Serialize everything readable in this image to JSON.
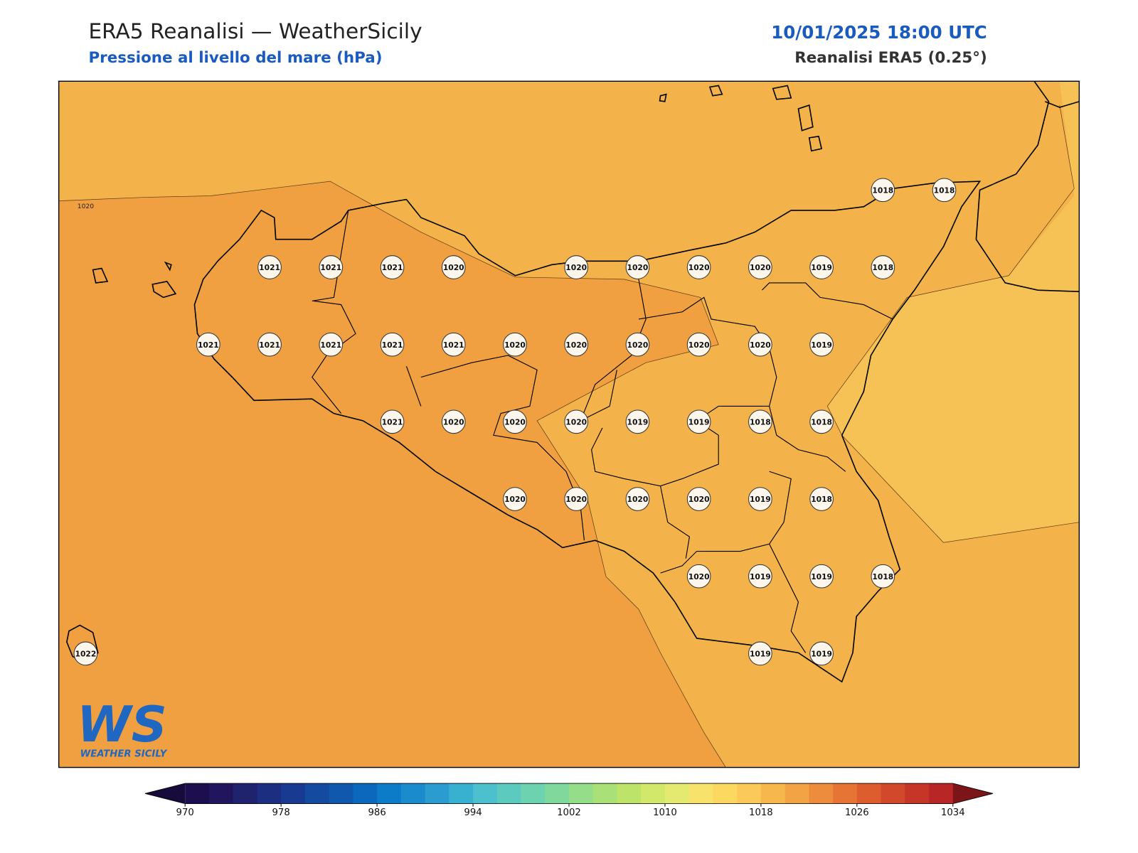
{
  "header": {
    "title": "ERA5 Reanalisi — WeatherSicily",
    "subtitle": "Pressione al livello del mare (hPa)",
    "datetime": "10/01/2025 18:00 UTC",
    "source": "Reanalisi ERA5 (0.25°)"
  },
  "map": {
    "contour_label": "1020",
    "stations": {
      "rows": [
        [
          null,
          null,
          null,
          null,
          null,
          null,
          null,
          null,
          null,
          null,
          null,
          null,
          null,
          1018,
          1018
        ],
        [
          null,
          null,
          null,
          1021,
          1021,
          1021,
          1020,
          null,
          1020,
          1020,
          1020,
          1020,
          1019,
          1018,
          null
        ],
        [
          null,
          null,
          1021,
          1021,
          1021,
          1021,
          1021,
          1020,
          1020,
          1020,
          1020,
          1020,
          1019,
          null,
          null
        ],
        [
          null,
          null,
          null,
          null,
          null,
          1021,
          1020,
          1020,
          1020,
          1019,
          1019,
          1018,
          1018,
          null,
          null
        ],
        [
          null,
          null,
          null,
          null,
          null,
          null,
          null,
          1020,
          1020,
          1020,
          1020,
          1019,
          1018,
          null,
          null
        ],
        [
          null,
          null,
          null,
          null,
          null,
          null,
          null,
          null,
          null,
          null,
          1020,
          1019,
          1019,
          1018,
          null
        ],
        [
          1022,
          null,
          null,
          null,
          null,
          null,
          null,
          null,
          null,
          null,
          null,
          1019,
          1019,
          null,
          null
        ]
      ]
    }
  },
  "colorbar": {
    "lim": [
      970,
      1034
    ],
    "ticks": [
      970,
      978,
      986,
      994,
      1002,
      1010,
      1018,
      1026,
      1034
    ],
    "colors": [
      "#1d0f4f",
      "#21165e",
      "#1f226d",
      "#1c2e80",
      "#183b91",
      "#144a9f",
      "#1058ad",
      "#0c68bc",
      "#0c7bc8",
      "#1a8ccd",
      "#2a9ccf",
      "#38b0d0",
      "#4cc0cc",
      "#5ccabf",
      "#6dd2b0",
      "#80d89c",
      "#95dd88",
      "#a9e077",
      "#bde469",
      "#d1e86b",
      "#e4ea6f",
      "#f7e36b",
      "#fcd860",
      "#fbc95a",
      "#f6b84d",
      "#f2a343",
      "#ed8c3c",
      "#e57435",
      "#dd5d2f",
      "#d2482b",
      "#c63528",
      "#b82725"
    ],
    "under_color": "#170b3b",
    "over_color": "#7b1518"
  },
  "logo": {
    "mark": "WS",
    "name": "WEATHER SICILY"
  }
}
